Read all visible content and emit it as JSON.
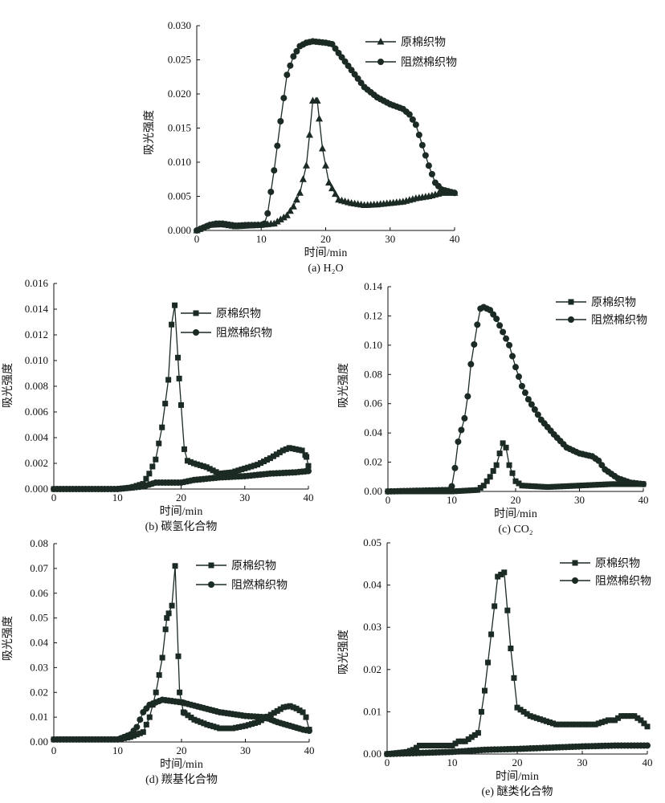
{
  "colors": {
    "ink": "#1b2a23"
  },
  "chart_data": [
    {
      "type": "line",
      "caption": "(a) H₂O",
      "xlabel": "时间/min",
      "ylabel": "吸光强度",
      "xlim": [
        0,
        40
      ],
      "ylim": [
        0,
        0.03
      ],
      "xticks": [
        "0",
        "10",
        "20",
        "30",
        "40"
      ],
      "yticks": [
        "0.000",
        "0.005",
        "0.010",
        "0.015",
        "0.020",
        "0.025",
        "0.030"
      ],
      "legend_position": "top-right",
      "series": [
        {
          "name": "原棉织物",
          "marker": "triangle",
          "x": [
            0,
            2,
            4,
            6,
            8,
            10,
            12,
            14,
            15,
            16,
            17,
            17.5,
            18,
            18.7,
            19.5,
            20.5,
            22,
            24,
            26,
            28,
            30,
            32,
            34,
            36,
            38,
            40
          ],
          "y": [
            0,
            0.0008,
            0.0009,
            0.0006,
            0.0007,
            0.0008,
            0.001,
            0.0022,
            0.0035,
            0.0055,
            0.0095,
            0.014,
            0.019,
            0.019,
            0.012,
            0.007,
            0.0045,
            0.004,
            0.0037,
            0.0038,
            0.004,
            0.0042,
            0.0047,
            0.005,
            0.0055,
            0.0055
          ]
        },
        {
          "name": "阻燃棉织物",
          "marker": "circle",
          "x": [
            0,
            2,
            3,
            4,
            6,
            8,
            10,
            10.5,
            11,
            12,
            13,
            14,
            15,
            16,
            17,
            18,
            20,
            21,
            22,
            24,
            26,
            28,
            30,
            32,
            33,
            34,
            35,
            36,
            37,
            38,
            40
          ],
          "y": [
            0,
            0.0008,
            0.001,
            0.001,
            0.0007,
            0.0008,
            0.0008,
            0.001,
            0.0025,
            0.0088,
            0.016,
            0.0228,
            0.0255,
            0.027,
            0.0275,
            0.0277,
            0.0275,
            0.0273,
            0.026,
            0.0235,
            0.021,
            0.0195,
            0.0185,
            0.0178,
            0.017,
            0.0155,
            0.0125,
            0.0095,
            0.007,
            0.006,
            0.0055
          ]
        }
      ]
    },
    {
      "type": "line",
      "caption": "(b) 碳氢化合物",
      "xlabel": "时间/min",
      "ylabel": "吸光强度",
      "xlim": [
        0,
        40
      ],
      "ylim": [
        0,
        0.016
      ],
      "xticks": [
        "0",
        "10",
        "20",
        "30",
        "40"
      ],
      "yticks": [
        "0.000",
        "0.002",
        "0.004",
        "0.006",
        "0.008",
        "0.010",
        "0.012",
        "0.014",
        "0.016"
      ],
      "legend_position": "top-right",
      "series": [
        {
          "name": "原棉织物",
          "marker": "square",
          "x": [
            0,
            10,
            12,
            14,
            15,
            16,
            17,
            18,
            18.5,
            19,
            19.7,
            20.5,
            21,
            22,
            24,
            26,
            28,
            30,
            32,
            34,
            36,
            37,
            38,
            39,
            39.7,
            40
          ],
          "y": [
            0,
            0,
            0.0001,
            0.0004,
            0.0012,
            0.0023,
            0.0048,
            0.0085,
            0.0128,
            0.0143,
            0.0086,
            0.0031,
            0.0022,
            0.002,
            0.0017,
            0.0012,
            0.0013,
            0.0016,
            0.0019,
            0.0024,
            0.003,
            0.0032,
            0.0031,
            0.003,
            0.0025,
            0.0018
          ]
        },
        {
          "name": "阻燃棉织物",
          "marker": "circle",
          "x": [
            0,
            10,
            14,
            16,
            18,
            20,
            22,
            26,
            30,
            34,
            38,
            40
          ],
          "y": [
            0,
            0,
            0.0002,
            0.0005,
            0.0005,
            0.0005,
            0.0007,
            0.0009,
            0.001,
            0.0012,
            0.0013,
            0.0014
          ]
        }
      ]
    },
    {
      "type": "line",
      "caption": "(c) CO₂",
      "xlabel": "时间/min",
      "ylabel": "吸光强度",
      "xlim": [
        0,
        40
      ],
      "ylim": [
        0,
        0.14
      ],
      "xticks": [
        "0",
        "10",
        "20",
        "30",
        "40"
      ],
      "yticks": [
        "0.00",
        "0.02",
        "0.04",
        "0.06",
        "0.08",
        "0.10",
        "0.12",
        "0.14"
      ],
      "legend_position": "top-right",
      "series": [
        {
          "name": "原棉织物",
          "marker": "square",
          "x": [
            0,
            10,
            14,
            15,
            16,
            17,
            17.5,
            18,
            18.5,
            19,
            20,
            21,
            25,
            30,
            35,
            40
          ],
          "y": [
            0,
            0,
            0.001,
            0.004,
            0.01,
            0.018,
            0.026,
            0.033,
            0.03,
            0.018,
            0.007,
            0.004,
            0.003,
            0.004,
            0.005,
            0.005
          ]
        },
        {
          "name": "阻燃棉织物",
          "marker": "circle",
          "x": [
            0,
            9.9,
            10.5,
            11,
            12,
            12.5,
            13,
            14,
            14.5,
            15,
            16,
            17,
            18,
            19,
            20,
            21,
            22,
            24,
            26,
            28,
            30,
            32,
            33,
            34,
            36,
            38,
            40
          ],
          "y": [
            0,
            0.001,
            0.016,
            0.034,
            0.05,
            0.065,
            0.087,
            0.114,
            0.125,
            0.126,
            0.124,
            0.118,
            0.109,
            0.1,
            0.085,
            0.072,
            0.063,
            0.049,
            0.039,
            0.03,
            0.026,
            0.024,
            0.021,
            0.015,
            0.009,
            0.006,
            0.005
          ]
        }
      ]
    },
    {
      "type": "line",
      "caption": "(d) 羰基化合物",
      "xlabel": "时间/min",
      "ylabel": "吸光强度",
      "xlim": [
        0,
        40
      ],
      "ylim": [
        0,
        0.08
      ],
      "xticks": [
        "0",
        "10",
        "20",
        "30",
        "40"
      ],
      "yticks": [
        "0.00",
        "0.01",
        "0.02",
        "0.03",
        "0.04",
        "0.05",
        "0.06",
        "0.07",
        "0.08"
      ],
      "legend_position": "top-right",
      "series": [
        {
          "name": "原棉织物",
          "marker": "square",
          "x": [
            0,
            10,
            12,
            14,
            15,
            16,
            17,
            17.7,
            18.5,
            19,
            19.7,
            20.3,
            22,
            24,
            26,
            28,
            30,
            32,
            34,
            36,
            37,
            38,
            39,
            39.5,
            40
          ],
          "y": [
            0.001,
            0.001,
            0.002,
            0.004,
            0.01,
            0.02,
            0.034,
            0.05,
            0.055,
            0.071,
            0.02,
            0.012,
            0.009,
            0.007,
            0.0055,
            0.0055,
            0.0065,
            0.008,
            0.011,
            0.014,
            0.0145,
            0.0135,
            0.012,
            0.01,
            0.005
          ]
        },
        {
          "name": "阻燃棉织物",
          "marker": "circle",
          "x": [
            0,
            10,
            12,
            13,
            14,
            15,
            17,
            20,
            23,
            26,
            30,
            33,
            35,
            37,
            39,
            40
          ],
          "y": [
            0.001,
            0.001,
            0.003,
            0.006,
            0.012,
            0.015,
            0.017,
            0.016,
            0.014,
            0.012,
            0.0105,
            0.01,
            0.008,
            0.0065,
            0.005,
            0.0045
          ]
        }
      ]
    },
    {
      "type": "line",
      "caption": "(e) 醚类化合物",
      "xlabel": "时间/min",
      "ylabel": "吸光强度",
      "xlim": [
        0,
        40
      ],
      "ylim": [
        0,
        0.05
      ],
      "xticks": [
        "0",
        "10",
        "20",
        "30",
        "40"
      ],
      "yticks": [
        "0.00",
        "0.01",
        "0.02",
        "0.03",
        "0.04",
        "0.05"
      ],
      "legend_position": "top-right",
      "series": [
        {
          "name": "原棉织物",
          "marker": "square",
          "x": [
            0,
            3,
            4,
            5,
            9,
            10,
            11,
            12,
            13,
            14,
            15,
            16.5,
            17,
            18,
            19,
            20,
            21,
            22,
            24,
            26,
            32,
            34,
            35,
            36,
            38,
            39,
            40
          ],
          "y": [
            0,
            0.0005,
            0.001,
            0.002,
            0.002,
            0.002,
            0.003,
            0.003,
            0.004,
            0.005,
            0.015,
            0.035,
            0.042,
            0.043,
            0.025,
            0.011,
            0.01,
            0.009,
            0.008,
            0.007,
            0.007,
            0.008,
            0.008,
            0.009,
            0.009,
            0.008,
            0.0065
          ]
        },
        {
          "name": "阻燃棉织物",
          "marker": "circle",
          "x": [
            0,
            10,
            15,
            20,
            25,
            30,
            35,
            40
          ],
          "y": [
            0,
            0.0005,
            0.001,
            0.0012,
            0.0015,
            0.0018,
            0.002,
            0.002
          ]
        }
      ]
    }
  ]
}
